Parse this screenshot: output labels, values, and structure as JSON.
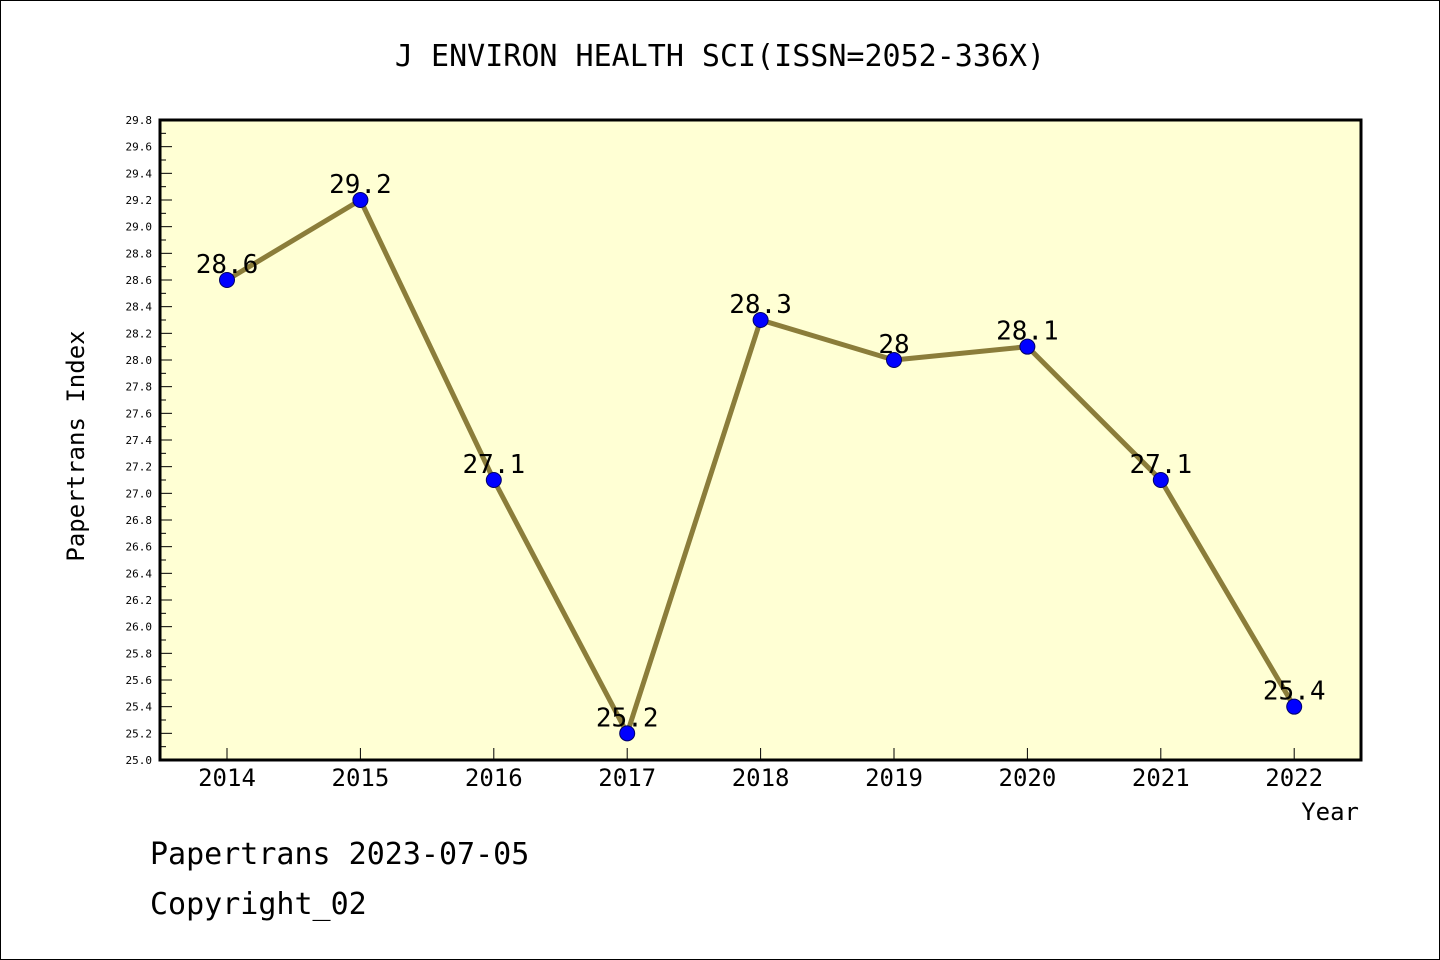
{
  "chart_data": {
    "type": "line",
    "title": "J ENVIRON HEALTH SCI(ISSN=2052-336X)",
    "xlabel": "Year",
    "ylabel": "Papertrans Index",
    "categories": [
      "2014",
      "2015",
      "2016",
      "2017",
      "2018",
      "2019",
      "2020",
      "2021",
      "2022"
    ],
    "series": [
      {
        "values": [
          28.6,
          29.2,
          27.1,
          25.2,
          28.3,
          28.0,
          28.1,
          27.1,
          25.4
        ],
        "labels": [
          "28.6",
          "29.2",
          "27.1",
          "25.2",
          "28.3",
          "28",
          "28.1",
          "27.1",
          "25.4"
        ]
      }
    ],
    "ylim": [
      25.0,
      29.8
    ],
    "yticks": [
      "25.0",
      "25.2",
      "25.4",
      "25.6",
      "25.8",
      "26.0",
      "26.2",
      "26.4",
      "26.6",
      "26.8",
      "27.0",
      "27.2",
      "27.4",
      "27.6",
      "27.8",
      "28.0",
      "28.2",
      "28.4",
      "28.6",
      "28.8",
      "29.0",
      "29.2",
      "29.4",
      "29.6",
      "29.8"
    ],
    "grid": false,
    "plot_background": "#ffffd4",
    "line_color": "#8b7d3a",
    "marker_color": "#0000ff"
  },
  "footer": {
    "line1": "Papertrans 2023-07-05",
    "line2": "Copyright_02"
  }
}
